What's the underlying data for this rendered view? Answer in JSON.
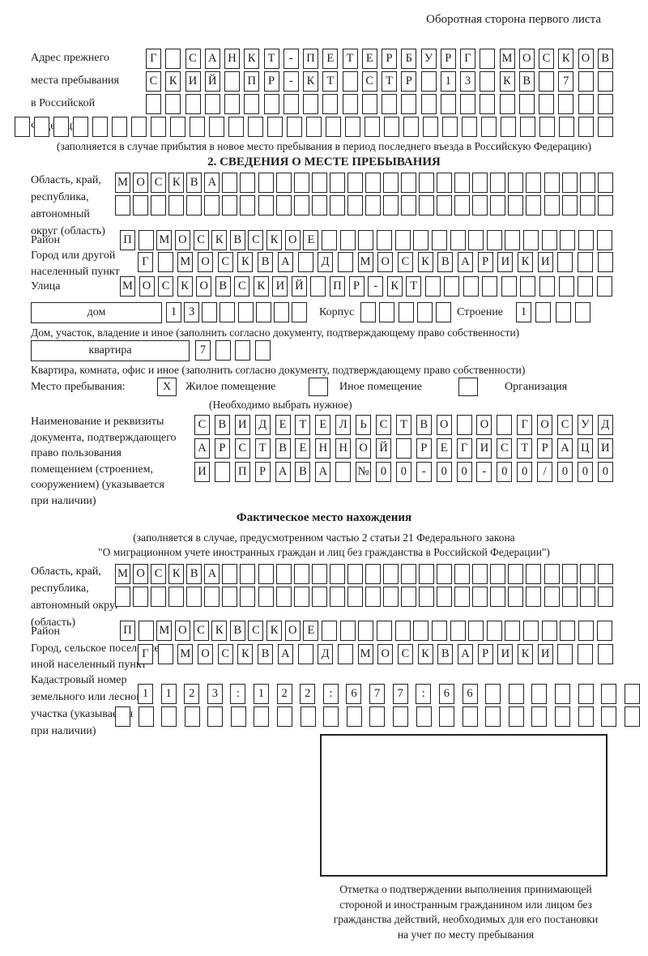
{
  "page": {
    "header_note": "Оборотная сторона первого листа"
  },
  "prev_address": {
    "label": "Адрес прежнего\nместа пребывания\nв Российской\nФедерации",
    "row1": {
      "count": 24,
      "chars": [
        "Г",
        "",
        "С",
        "А",
        "Н",
        "К",
        "Т",
        "-",
        "П",
        "Е",
        "Т",
        "Е",
        "Р",
        "Б",
        "У",
        "Р",
        "Г",
        "",
        "М",
        "О",
        "С",
        "К",
        "О",
        "В"
      ]
    },
    "row2": {
      "count": 24,
      "chars": [
        "С",
        "К",
        "И",
        "Й",
        "",
        "П",
        "Р",
        "-",
        "К",
        "Т",
        "",
        "С",
        "Т",
        "Р",
        "",
        "1",
        "3",
        "",
        "К",
        "В",
        "",
        "7"
      ]
    },
    "row3": {
      "count": 24,
      "chars": []
    },
    "row4": {
      "count": 31,
      "chars": []
    },
    "note": "(заполняется в случае прибытия в новое место пребывания в период последнего въезда в Российскую Федерацию)"
  },
  "section2": {
    "title": "2. СВЕДЕНИЯ О МЕСТЕ ПРЕБЫВАНИЯ",
    "region": {
      "label": "Область, край,\nреспублика,\nавтономный\nокруг (область)",
      "row1": {
        "count": 28,
        "chars": [
          "М",
          "О",
          "С",
          "К",
          "В",
          "А"
        ]
      },
      "row2": {
        "count": 28,
        "chars": []
      }
    },
    "district": {
      "label": "Район",
      "row": {
        "count": 27,
        "chars": [
          "П",
          "",
          "М",
          "О",
          "С",
          "К",
          "В",
          "С",
          "К",
          "О",
          "Е"
        ]
      }
    },
    "city": {
      "label": "Город или другой\nнаселенный пункт",
      "row": {
        "count": 24,
        "chars": [
          "Г",
          "",
          "М",
          "О",
          "С",
          "К",
          "В",
          "А",
          "",
          "Д",
          "",
          "М",
          "О",
          "С",
          "К",
          "В",
          "А",
          "Р",
          "И",
          "К",
          "И"
        ]
      }
    },
    "street": {
      "label": "Улица",
      "row": {
        "count": 26,
        "chars": [
          "М",
          "О",
          "С",
          "К",
          "О",
          "В",
          "С",
          "К",
          "И",
          "Й",
          "",
          "П",
          "Р",
          "-",
          "К",
          "Т"
        ]
      }
    },
    "house": {
      "box_label": "дом",
      "number": {
        "count": 8,
        "chars": [
          "1",
          "3"
        ]
      },
      "korpus_label": "Корпус",
      "korpus": {
        "count": 5,
        "chars": []
      },
      "stroenie_label": "Строение",
      "stroenie": {
        "count": 4,
        "chars": [
          "1"
        ]
      }
    },
    "house_note": "Дом, участок, владение и иное (заполнить согласно документу, подтверждающему право собственности)",
    "apartment": {
      "box_label": "квартира",
      "number": {
        "count": 4,
        "chars": [
          "7"
        ]
      }
    },
    "apartment_note": "Квартира, комната, офис и иное (заполнить согласно документу, подтверждающему право собственности)",
    "stay_type": {
      "label": "Место пребывания:",
      "options": [
        {
          "label": "Жилое помещение",
          "mark": "X"
        },
        {
          "label": "Иное помещение",
          "mark": ""
        },
        {
          "label": "Организация",
          "mark": ""
        }
      ],
      "note": "(Необходимо выбрать нужное)"
    },
    "document": {
      "label": "Наименование и реквизиты\nдокумента, подтверждающего\nправо пользования\nпомещением (строением,\nсооружением) (указывается\nпри наличии)",
      "row1": {
        "count": 21,
        "chars": [
          "С",
          "В",
          "И",
          "Д",
          "Е",
          "Т",
          "Е",
          "Л",
          "Ь",
          "С",
          "Т",
          "В",
          "О",
          "",
          "О",
          "",
          "Г",
          "О",
          "С",
          "У",
          "Д"
        ]
      },
      "row2": {
        "count": 21,
        "chars": [
          "А",
          "Р",
          "С",
          "Т",
          "В",
          "Е",
          "Н",
          "Н",
          "О",
          "Й",
          "",
          "Р",
          "Е",
          "Г",
          "И",
          "С",
          "Т",
          "Р",
          "А",
          "Ц",
          "И"
        ]
      },
      "row3": {
        "count": 21,
        "chars": [
          "И",
          "",
          "П",
          "Р",
          "А",
          "В",
          "А",
          "",
          "№",
          "0",
          "0",
          "-",
          "0",
          "0",
          "-",
          "0",
          "0",
          "/",
          "0",
          "0",
          "0"
        ]
      }
    }
  },
  "actual_location": {
    "title": "Фактическое место нахождения",
    "note1": "(заполняется в случае, предусмотренном частью 2 статьи 21 Федерального закона",
    "note2": "\"О миграционном учете иностранных граждан и лиц без гражданства в Российской Федерации\")",
    "region": {
      "label": "Область, край,\nреспублика,\nавтономный округ\n(область)",
      "row1": {
        "count": 28,
        "chars": [
          "М",
          "О",
          "С",
          "К",
          "В",
          "А"
        ]
      },
      "row2": {
        "count": 28,
        "chars": []
      }
    },
    "district": {
      "label": "Район",
      "row": {
        "count": 27,
        "chars": [
          "П",
          "",
          "М",
          "О",
          "С",
          "К",
          "В",
          "С",
          "К",
          "О",
          "Е"
        ]
      }
    },
    "city": {
      "label": "Город, сельское поселение,\nиной населенный пункт",
      "row": {
        "count": 24,
        "chars": [
          "Г",
          "",
          "М",
          "О",
          "С",
          "К",
          "В",
          "А",
          "",
          "Д",
          "",
          "М",
          "О",
          "С",
          "К",
          "В",
          "А",
          "Р",
          "И",
          "К",
          "И"
        ]
      }
    },
    "cadastral": {
      "label": "Кадастровый номер\nземельного или лесного\nучастка (указывается\nпри наличии)",
      "row1": {
        "count": 22,
        "chars": [
          "1",
          "1",
          "2",
          "3",
          ":",
          "1",
          "2",
          "2",
          ":",
          "6",
          "7",
          "7",
          ":",
          "6",
          "6"
        ]
      },
      "row2": {
        "count": 23,
        "chars": []
      }
    },
    "stamp_note": "Отметка о подтверждении выполнения принимающей\nстороной и иностранным гражданином или лицом без\nгражданства действий, необходимых для его постановки\nна учет по месту пребывания"
  }
}
